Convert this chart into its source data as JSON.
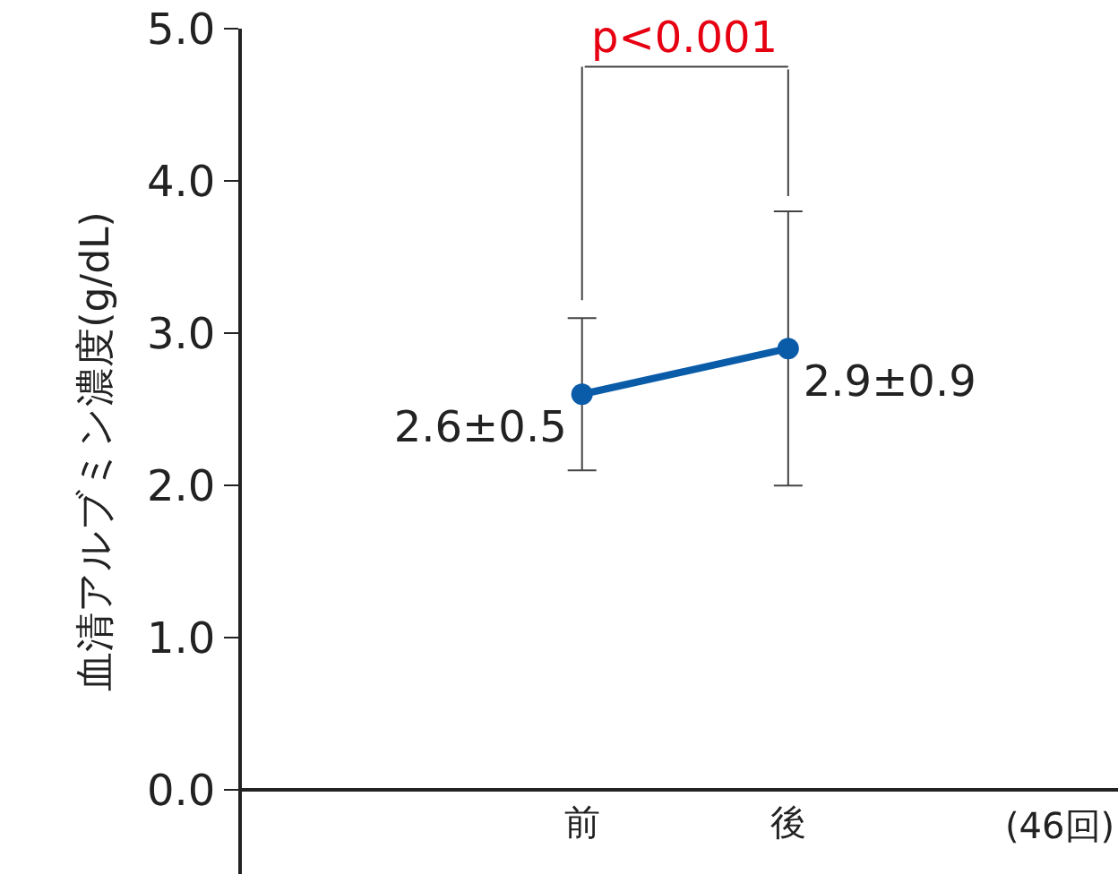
{
  "chart_data": {
    "type": "line",
    "ylabel": "血清アルブミン濃度(g/dL)",
    "categories": [
      "前",
      "後"
    ],
    "series": [
      {
        "color": "#0a5ca8",
        "values": [
          2.6,
          2.9
        ],
        "errors": [
          0.5,
          0.9
        ],
        "value_labels": [
          "2.6±0.5",
          "2.9±0.9"
        ]
      }
    ],
    "ylim": [
      -0.55,
      5.0
    ],
    "yticks": [
      {
        "value": 0,
        "label": "0.0"
      },
      {
        "value": 1,
        "label": "1.0"
      },
      {
        "value": 2,
        "label": "2.0"
      },
      {
        "value": 3,
        "label": "3.0"
      },
      {
        "value": 4,
        "label": "4.0"
      },
      {
        "value": 5,
        "label": "5.0"
      }
    ],
    "annotations": [
      "p<0.001",
      "(46回)"
    ],
    "marker": "circle",
    "line_style": "solid",
    "legend": false
  }
}
